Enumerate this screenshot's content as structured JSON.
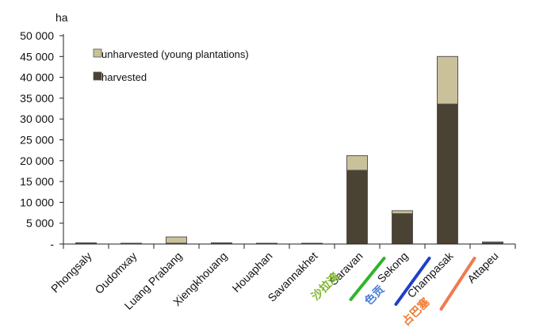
{
  "chart_data": {
    "type": "bar",
    "stacked": true,
    "ylabel": "ha",
    "ylim": [
      0,
      50000
    ],
    "y_ticks": [
      0,
      5000,
      10000,
      15000,
      20000,
      25000,
      30000,
      35000,
      40000,
      45000,
      50000
    ],
    "y_tick_labels": [
      "-",
      "5 000",
      "10 000",
      "15 000",
      "20 000",
      "25 000",
      "30 000",
      "35 000",
      "40 000",
      "45 000",
      "50 000"
    ],
    "grid": false,
    "legend_position": "top-left",
    "categories": [
      "Phongsaly",
      "Oudomxay",
      "Luang Prabang",
      "Xiengkhouang",
      "Houaphan",
      "Savannakhet",
      "Saravan",
      "Sekong",
      "Champasak",
      "Attapeu"
    ],
    "series": [
      {
        "name": "harvested",
        "color": "#4a4232",
        "values": [
          100,
          0,
          200,
          100,
          0,
          0,
          17700,
          7300,
          33600,
          300
        ]
      },
      {
        "name": "unharvested (young plantations)",
        "color": "#c9c199",
        "values": [
          200,
          50,
          1500,
          200,
          50,
          50,
          3500,
          700,
          11400,
          200
        ]
      }
    ],
    "legend_order": [
      "unharvested (young plantations)",
      "harvested"
    ],
    "annotations": [
      {
        "text": "沙拉湾",
        "category": "Saravan",
        "color": "#7ab52a",
        "underline_color": "#2fb52a"
      },
      {
        "text": "色贡",
        "category": "Sekong",
        "color": "#4a7fd8",
        "underline_color": "#1f3ec8"
      },
      {
        "text": "占巴塞",
        "category": "Champasak",
        "color": "#f07a30",
        "underline_color": "#f07a50"
      }
    ]
  }
}
